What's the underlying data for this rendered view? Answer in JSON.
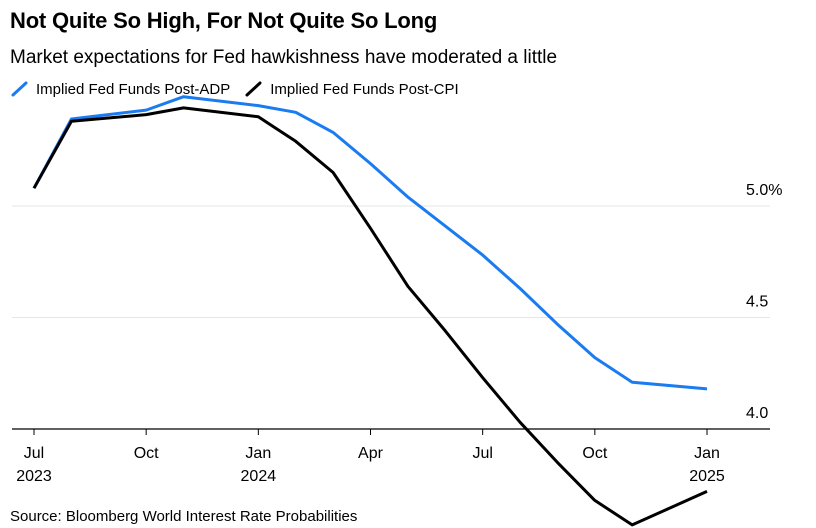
{
  "title": "Not Quite So High, For Not Quite So Long",
  "subtitle": "Market expectations for Fed hawkishness have moderated a little",
  "source": "Source: Bloomberg World Interest Rate Probabilities",
  "colors": {
    "post_adp": "#1a7cf0",
    "post_cpi": "#000000",
    "grid": "#e6e6e6",
    "axis": "#000000"
  },
  "chart_data": {
    "type": "line",
    "x": [
      "2023-07",
      "2023-08",
      "2023-09",
      "2023-10",
      "2023-11",
      "2023-12",
      "2024-01",
      "2024-02",
      "2024-03",
      "2024-04",
      "2024-05",
      "2024-06",
      "2024-07",
      "2024-08",
      "2024-09",
      "2024-10",
      "2024-11",
      "2024-12",
      "2025-01"
    ],
    "series": [
      {
        "name": "Implied Fed Funds Post-ADP",
        "values": [
          5.08,
          5.39,
          null,
          5.43,
          5.49,
          null,
          5.45,
          5.42,
          5.33,
          5.19,
          5.04,
          4.91,
          4.78,
          4.63,
          4.47,
          4.32,
          4.21,
          null,
          4.18
        ]
      },
      {
        "name": "Implied Fed Funds Post-CPI",
        "values": [
          5.08,
          5.38,
          null,
          5.41,
          5.44,
          null,
          5.4,
          5.29,
          5.15,
          4.9,
          4.64,
          4.44,
          4.23,
          4.03,
          3.85,
          3.68,
          3.57,
          null,
          3.72
        ]
      }
    ],
    "ylim": [
      3.9,
      5.5
    ],
    "yticks": [
      {
        "value": 5.0,
        "label": "5.0%"
      },
      {
        "value": 4.5,
        "label": "4.5"
      },
      {
        "value": 4.0,
        "label": "4.0"
      }
    ],
    "xticks": [
      {
        "x": "2023-07",
        "label": "Jul",
        "sublabel": "2023"
      },
      {
        "x": "2023-10",
        "label": "Oct",
        "sublabel": ""
      },
      {
        "x": "2024-01",
        "label": "Jan",
        "sublabel": "2024"
      },
      {
        "x": "2024-04",
        "label": "Apr",
        "sublabel": ""
      },
      {
        "x": "2024-07",
        "label": "Jul",
        "sublabel": ""
      },
      {
        "x": "2024-10",
        "label": "Oct",
        "sublabel": ""
      },
      {
        "x": "2025-01",
        "label": "Jan",
        "sublabel": "2025"
      }
    ],
    "grid": true,
    "legend": "top-left"
  }
}
